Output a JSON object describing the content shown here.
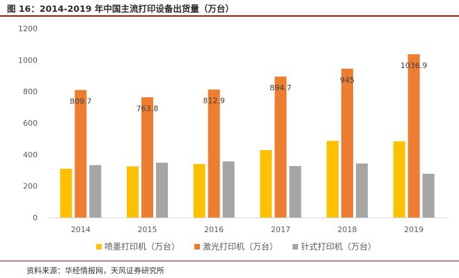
{
  "title": "图 16：2014-2019 年中国主流打印设备出货量（万台）",
  "source": "资料来源：华经情报网，天风证券研究所",
  "chart_data": {
    "type": "bar",
    "categories": [
      "2014",
      "2015",
      "2016",
      "2017",
      "2018",
      "2019"
    ],
    "series": [
      {
        "name": "喷墨打印机（万台）",
        "color": "#FFC000",
        "values": [
          310,
          325,
          340,
          428,
          487,
          484
        ]
      },
      {
        "name": "激光打印机（万台）",
        "color": "#ED7D31",
        "values": [
          809.7,
          763.8,
          812.9,
          894.7,
          945,
          1036.9
        ],
        "labels": [
          "809.7",
          "763.8",
          "812.9",
          "894.7",
          "945",
          "1036.9"
        ]
      },
      {
        "name": "针式打印机（万台）",
        "color": "#A5A5A5",
        "values": [
          333,
          348,
          356,
          327,
          343,
          278
        ]
      }
    ],
    "ylim": [
      0,
      1200
    ],
    "yticks": [
      0,
      200,
      400,
      600,
      800,
      1000,
      1200
    ],
    "ytick_labels": [
      "0",
      "200",
      "400",
      "600",
      "800",
      "1000",
      "1200"
    ],
    "grid": false,
    "legend": "bottom",
    "xlabel": "",
    "ylabel": ""
  }
}
